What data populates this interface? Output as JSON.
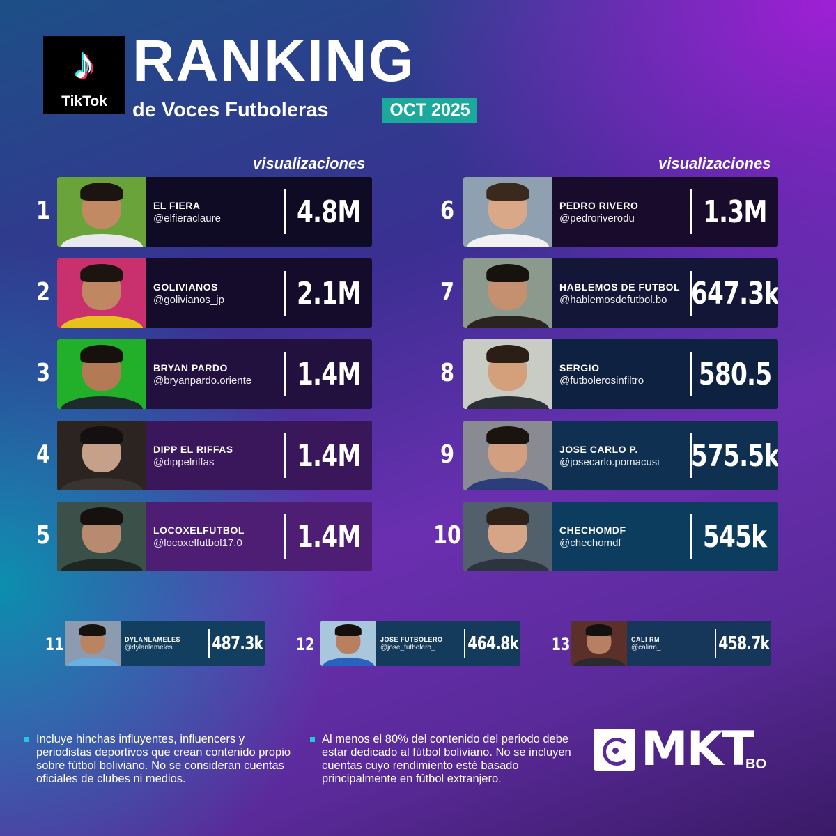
{
  "header": {
    "logo_text": "TikTok",
    "logo_glyph": "♪",
    "title": "RANKING",
    "subtitle": "de Voces Futboleras",
    "date": "OCT 2025"
  },
  "column_label": "visualizaciones",
  "entries": [
    {
      "rank": "1",
      "name": "EL FIERA",
      "handle": "@elfieraclaure",
      "views": "4.8M",
      "card_color": "#100b24",
      "bg": "#6aa33a",
      "shirt": "#e8e8ee",
      "skin": "#c28a62",
      "hair": "#1b1410"
    },
    {
      "rank": "2",
      "name": "GOLIVIANOS",
      "handle": "@golivianos_jp",
      "views": "2.1M",
      "card_color": "#140c2a",
      "bg": "#c8306e",
      "shirt": "#e7c21a",
      "skin": "#c08862",
      "hair": "#1c140f"
    },
    {
      "rank": "3",
      "name": "BRYAN PARDO",
      "handle": "@bryanpardo.oriente",
      "views": "1.4M",
      "card_color": "#22103e",
      "bg": "#22b02b",
      "shirt": "#1f2a2a",
      "skin": "#b47a56",
      "hair": "#17110d"
    },
    {
      "rank": "4",
      "name": "DIPP EL RIFFAS",
      "handle": "@dippelriffas",
      "views": "1.4M",
      "card_color": "#3a165a",
      "bg": "#2c2420",
      "shirt": "#3a3430",
      "skin": "#c6a088",
      "hair": "#141010"
    },
    {
      "rank": "5",
      "name": "LOCOXELFUTBOL",
      "handle": "@locoxelfutbol17.0",
      "views": "1.4M",
      "card_color": "#4e1e74",
      "bg": "#3a5048",
      "shirt": "#1e2622",
      "skin": "#b88a70",
      "hair": "#16110e"
    },
    {
      "rank": "6",
      "name": "PEDRO RIVERO",
      "handle": "@pedroriverodu",
      "views": "1.3M",
      "card_color": "#180b2c",
      "bg": "#8fa0b0",
      "shirt": "#f1f1f4",
      "skin": "#d8a888",
      "hair": "#3a2a1e"
    },
    {
      "rank": "7",
      "name": "HABLEMOS DE FUTBOL",
      "handle": "@hablemosdefutbol.bo",
      "views": "647.3k",
      "card_color": "#141638",
      "bg": "#8c9a8e",
      "shirt": "#2a2420",
      "skin": "#c49070",
      "hair": "#18120e"
    },
    {
      "rank": "8",
      "name": "SERGIO",
      "handle": "@futbolerosinfiltro",
      "views": "580.5",
      "card_color": "#0f2140",
      "bg": "#c9ccc4",
      "shirt": "#2a3036",
      "skin": "#d4a07c",
      "hair": "#2a1e16"
    },
    {
      "rank": "9",
      "name": "JOSE CARLO P.",
      "handle": "@josecarlo.pomacusi",
      "views": "575.5k",
      "card_color": "#0f3050",
      "bg": "#8a8a92",
      "shirt": "#2b3e7a",
      "skin": "#d2a080",
      "hair": "#1a130e"
    },
    {
      "rank": "10",
      "name": "CHECHOMDF",
      "handle": "@chechomdf",
      "views": "545k",
      "card_color": "#0d3d5e",
      "bg": "#52606c",
      "shirt": "#2c3440",
      "skin": "#d6a486",
      "hair": "#2e2218"
    },
    {
      "rank": "11",
      "name": "DYLANLAMELES",
      "handle": "@dylanlameles",
      "views": "487.3k",
      "card_color": "#123e60",
      "bg": "#8c9bb0",
      "shirt": "#6ab0e0",
      "skin": "#b88462",
      "hair": "#18120e"
    },
    {
      "rank": "12",
      "name": "JOSE FUTBOLERO",
      "handle": "@jose_futbolero_",
      "views": "464.8k",
      "card_color": "#143a5c",
      "bg": "#a8c6dc",
      "shirt": "#2a62c0",
      "skin": "#b88060",
      "hair": "#16100c"
    },
    {
      "rank": "13",
      "name": "CALI RM",
      "handle": "@calirm_",
      "views": "458.7k",
      "card_color": "#16365a",
      "bg": "#5a3028",
      "shirt": "#2a2a30",
      "skin": "#b88062",
      "hair": "#131010"
    }
  ],
  "notes": [
    "Incluye hinchas influyentes, influencers y periodistas deportivos que crean contenido propio sobre fútbol boliviano. No se consideran cuentas oficiales de clubes ni medios.",
    "Al menos el 80% del contenido del periodo debe estar dedicado al fútbol boliviano. No se incluyen cuentas cuyo rendimiento esté basado principalmente en fútbol extranjero."
  ],
  "brand": {
    "name": "MKT",
    "suffix": "BO"
  }
}
